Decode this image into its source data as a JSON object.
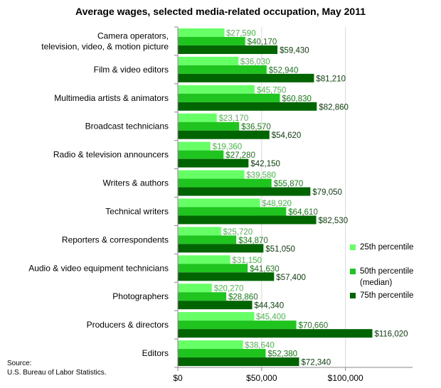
{
  "chart_data": {
    "type": "bar",
    "orientation": "horizontal",
    "title": "Average wages, selected media-related occupation, May 2011",
    "categories": [
      [
        "Camera operators,",
        "television, video, & motion picture"
      ],
      [
        "Film & video editors"
      ],
      [
        "Multimedia artists & animators"
      ],
      [
        "Broadcast technicians"
      ],
      [
        "Radio & television announcers"
      ],
      [
        "Writers & authors"
      ],
      [
        "Technical writers"
      ],
      [
        "Reporters & correspondents"
      ],
      [
        "Audio & video equipment technicians"
      ],
      [
        "Photographers"
      ],
      [
        "Producers & directors"
      ],
      [
        "Editors"
      ]
    ],
    "series": [
      {
        "name": "25th percentile",
        "color": "#66ff66",
        "label_color": "#4db84d",
        "values": [
          27590,
          36030,
          45750,
          23170,
          19360,
          39580,
          48920,
          25720,
          31150,
          20270,
          45400,
          38640
        ],
        "labels": [
          "$27,590",
          "$36,030",
          "$45,750",
          "$23,170",
          "$19,360",
          "$39,580",
          "$48,920",
          "$25,720",
          "$31,150",
          "$20,270",
          "$45,400",
          "$38,640"
        ]
      },
      {
        "name": "50th percentile (median)",
        "name_lines": [
          "50th percentile",
          "(median)"
        ],
        "color": "#1fc41f",
        "label_color": "#1a7a1a",
        "values": [
          40170,
          52940,
          60830,
          36570,
          27280,
          55870,
          64610,
          34870,
          41630,
          28860,
          70660,
          52380
        ],
        "labels": [
          "$40,170",
          "$52,940",
          "$60,830",
          "$36,570",
          "$27,280",
          "$55,870",
          "$64,610",
          "$34,870",
          "$41,630",
          "$28,860",
          "$70,660",
          "$52,380"
        ]
      },
      {
        "name": "75th percentile",
        "color": "#006400",
        "label_color": "#0a3d0a",
        "values": [
          59430,
          81210,
          82860,
          54620,
          42150,
          79050,
          82530,
          51050,
          57400,
          44340,
          116020,
          72340
        ],
        "labels": [
          "$59,430",
          "$81,210",
          "$82,860",
          "$54,620",
          "$42,150",
          "$79,050",
          "$82,530",
          "$51,050",
          "$57,400",
          "$44,340",
          "$116,020",
          "$72,340"
        ]
      }
    ],
    "xlim": [
      0,
      140000
    ],
    "xticks": [
      0,
      50000,
      100000
    ],
    "xtick_labels": [
      "$0",
      "$50,000",
      "$100,000"
    ],
    "grid": true,
    "legend_position": "right"
  },
  "source": [
    "Source:",
    "U.S. Bureau of Labor Statistics."
  ]
}
